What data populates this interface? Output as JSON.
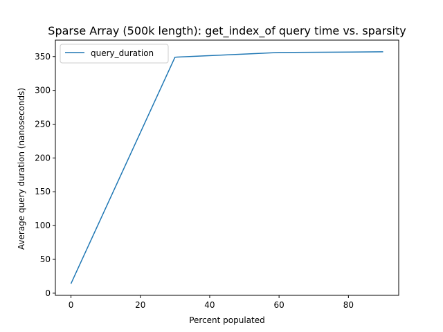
{
  "chart_data": {
    "type": "line",
    "title": "Sparse Array (500k length): get_index_of query time vs. sparsity",
    "xlabel": "Percent populated",
    "ylabel": "Average query duration (nanoseconds)",
    "xlim": [
      -4.5,
      94.5
    ],
    "ylim": [
      -3.2,
      374.3
    ],
    "x_ticks": [
      0,
      20,
      40,
      60,
      80
    ],
    "y_ticks": [
      0,
      50,
      100,
      150,
      200,
      250,
      300,
      350
    ],
    "grid": false,
    "legend_position": "top-left",
    "series": [
      {
        "name": "query_duration",
        "color": "#1f77b4",
        "x": [
          0,
          30,
          60,
          90
        ],
        "y": [
          14,
          349,
          356,
          357
        ]
      }
    ]
  }
}
